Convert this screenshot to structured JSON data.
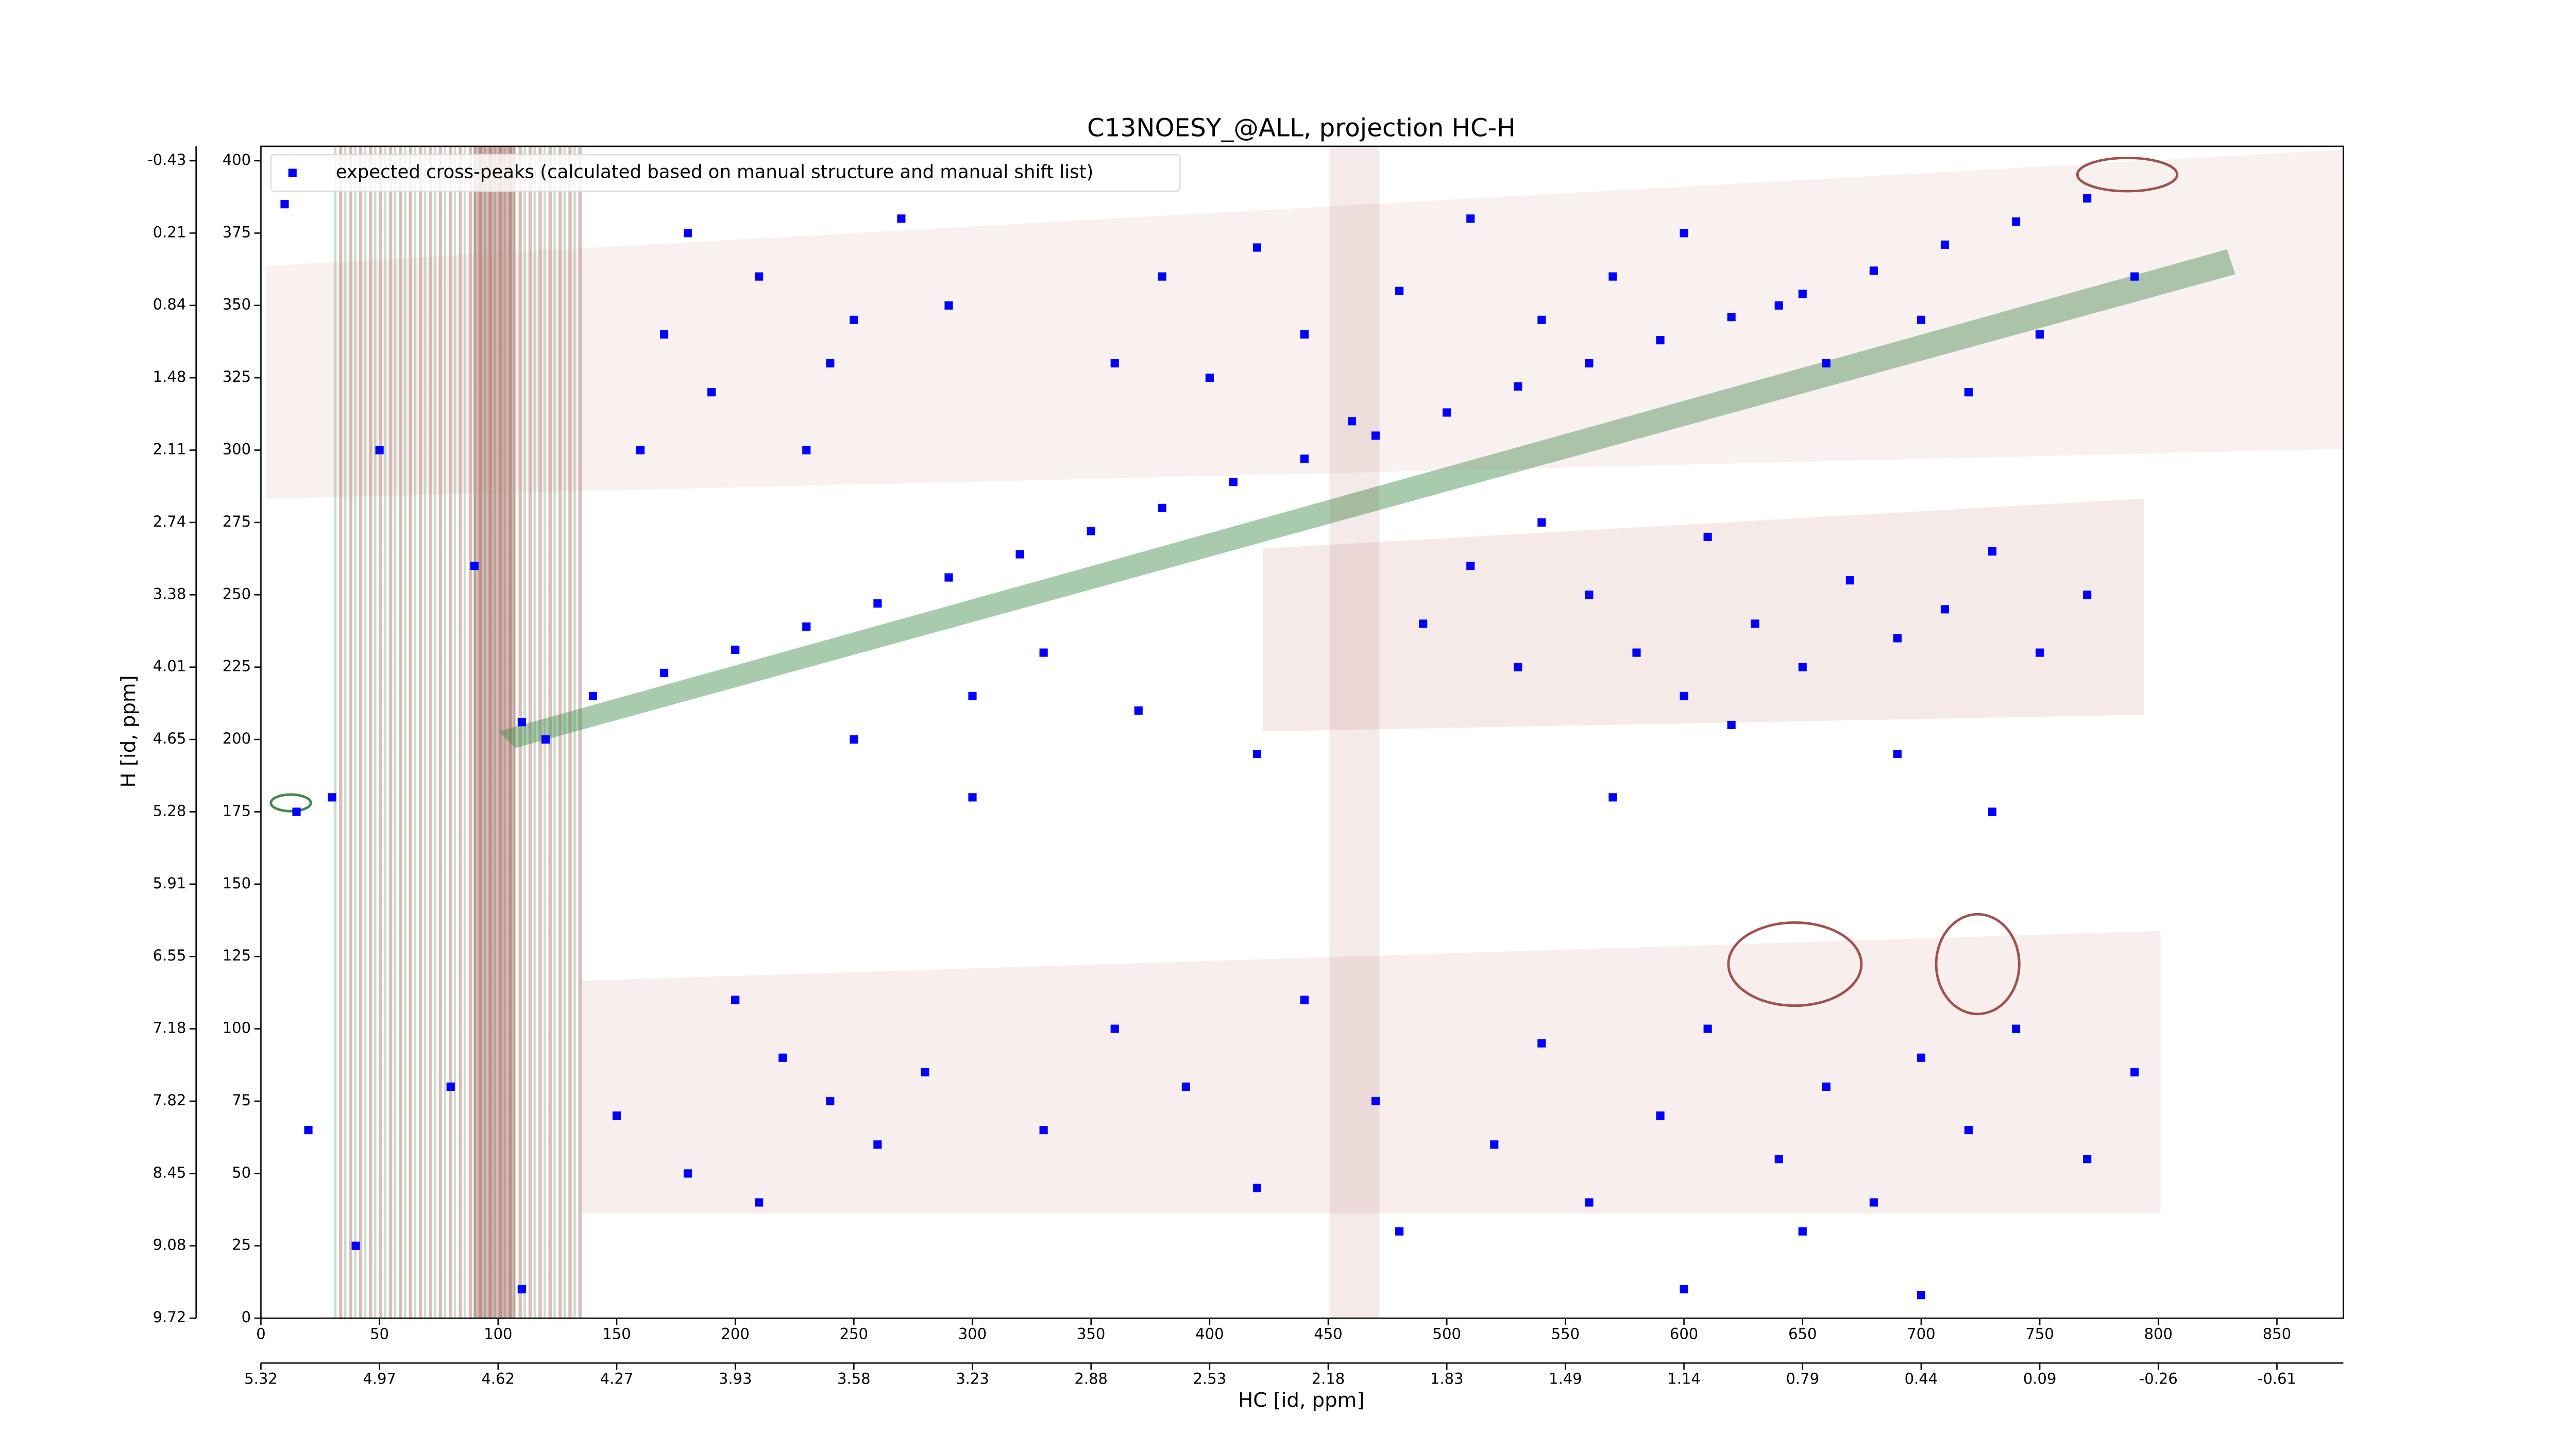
{
  "chart_data": {
    "type": "scatter",
    "title": "C13NOESY_@ALL, projection HC-H",
    "x_label": "HC [id, ppm]",
    "y_label": "H [id, ppm]",
    "legend": "upper left",
    "xlim": [
      0,
      878
    ],
    "ylim": [
      0,
      405
    ],
    "xticks": [
      0,
      50,
      100,
      150,
      200,
      250,
      300,
      350,
      400,
      450,
      500,
      550,
      600,
      650,
      700,
      750,
      800,
      850
    ],
    "yticks": [
      0,
      25,
      50,
      75,
      100,
      125,
      150,
      175,
      200,
      225,
      250,
      275,
      300,
      325,
      350,
      375,
      400
    ],
    "x2lim": [
      0,
      878
    ],
    "x2ticks": [
      {
        "value": 0,
        "label": "5.32"
      },
      {
        "value": 50,
        "label": "4.97"
      },
      {
        "value": 100,
        "label": "4.62"
      },
      {
        "value": 150,
        "label": "4.27"
      },
      {
        "value": 200,
        "label": "3.93"
      },
      {
        "value": 250,
        "label": "3.58"
      },
      {
        "value": 300,
        "label": "3.23"
      },
      {
        "value": 350,
        "label": "2.88"
      },
      {
        "value": 400,
        "label": "2.53"
      },
      {
        "value": 450,
        "label": "2.18"
      },
      {
        "value": 500,
        "label": "1.83"
      },
      {
        "value": 550,
        "label": "1.49"
      },
      {
        "value": 600,
        "label": "1.14"
      },
      {
        "value": 650,
        "label": "0.79"
      },
      {
        "value": 700,
        "label": "0.44"
      },
      {
        "value": 750,
        "label": "0.09"
      },
      {
        "value": 800,
        "label": "-0.26"
      },
      {
        "value": 850,
        "label": "-0.61"
      }
    ],
    "y2lim": [
      0,
      405
    ],
    "y2ticks": [
      {
        "value": 0,
        "label": "9.72"
      },
      {
        "value": 25,
        "label": "9.08"
      },
      {
        "value": 50,
        "label": "8.45"
      },
      {
        "value": 75,
        "label": "7.82"
      },
      {
        "value": 100,
        "label": "7.18"
      },
      {
        "value": 125,
        "label": "6.55"
      },
      {
        "value": 150,
        "label": "5.91"
      },
      {
        "value": 175,
        "label": "5.28"
      },
      {
        "value": 200,
        "label": "4.65"
      },
      {
        "value": 225,
        "label": "4.01"
      },
      {
        "value": 250,
        "label": "3.38"
      },
      {
        "value": 275,
        "label": "2.74"
      },
      {
        "value": 300,
        "label": "2.11"
      },
      {
        "value": 325,
        "label": "1.48"
      },
      {
        "value": 350,
        "label": "0.84"
      },
      {
        "value": 375,
        "label": "0.21"
      },
      {
        "value": 400,
        "label": "-0.43"
      }
    ],
    "series": [
      {
        "name": "expected cross-peaks (calculated based on manual structure and manual shift list)",
        "color": "#0000ff",
        "x": [
          110,
          140,
          170,
          200,
          230,
          260,
          290,
          320,
          350,
          380,
          410,
          440,
          470,
          500,
          530,
          560,
          590,
          620,
          650,
          680,
          710,
          740,
          770,
          170,
          190,
          210,
          230,
          250,
          270,
          180,
          240,
          290,
          160,
          360,
          380,
          400,
          420,
          440,
          460,
          480,
          510,
          540,
          570,
          600,
          640,
          660,
          700,
          720,
          750,
          790,
          490,
          510,
          530,
          560,
          580,
          610,
          630,
          650,
          670,
          690,
          710,
          730,
          750,
          770,
          600,
          540,
          120,
          250,
          300,
          330,
          370,
          420,
          570,
          620,
          690,
          730,
          300,
          200,
          220,
          240,
          260,
          180,
          150,
          210,
          280,
          330,
          360,
          390,
          420,
          440,
          470,
          480,
          520,
          540,
          560,
          590,
          610,
          640,
          660,
          680,
          700,
          720,
          740,
          770,
          790,
          650,
          700,
          600,
          80,
          20,
          40,
          110,
          30,
          15,
          10,
          50,
          90
        ],
        "values": [
          206,
          215,
          223,
          231,
          239,
          247,
          256,
          264,
          272,
          280,
          289,
          297,
          305,
          313,
          322,
          330,
          338,
          346,
          354,
          362,
          371,
          379,
          387,
          340,
          320,
          360,
          300,
          345,
          380,
          375,
          330,
          350,
          300,
          330,
          360,
          325,
          370,
          340,
          310,
          355,
          380,
          345,
          360,
          375,
          350,
          330,
          345,
          320,
          340,
          360,
          240,
          260,
          225,
          250,
          230,
          270,
          240,
          225,
          255,
          235,
          245,
          265,
          230,
          250,
          215,
          275,
          200,
          200,
          215,
          230,
          210,
          195,
          180,
          205,
          195,
          175,
          180,
          110,
          90,
          75,
          60,
          50,
          70,
          40,
          85,
          65,
          100,
          80,
          45,
          110,
          75,
          30,
          60,
          95,
          40,
          70,
          100,
          55,
          80,
          40,
          90,
          65,
          100,
          55,
          85,
          30,
          8,
          10,
          80,
          65,
          25,
          10,
          180,
          175,
          385,
          300,
          260
        ]
      }
    ]
  }
}
